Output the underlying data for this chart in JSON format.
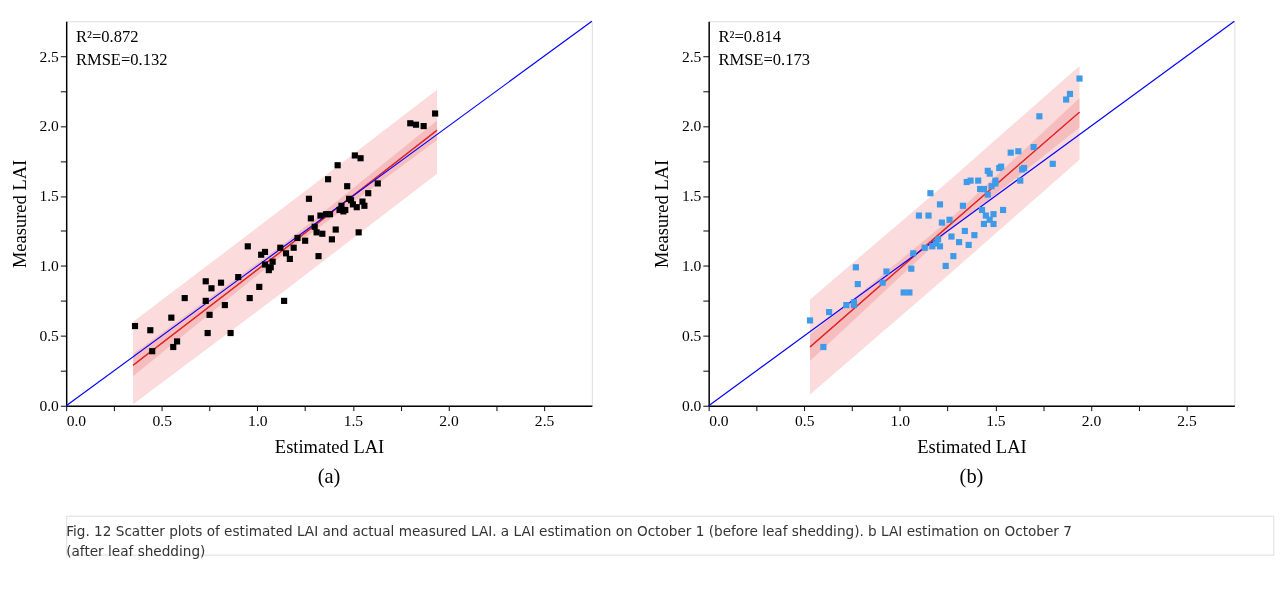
{
  "chart_data": [
    {
      "type": "scatter",
      "xlabel": "Estimated LAI",
      "ylabel": "Measured LAI",
      "grid": false,
      "xlim": [
        0,
        2.75
      ],
      "ylim": [
        0,
        2.75
      ],
      "xticks": [
        {
          "value": 0,
          "label": "0.0"
        },
        {
          "value": 0.25,
          "label": null
        },
        {
          "value": 0.5,
          "label": "0.5"
        },
        {
          "value": 0.75,
          "label": null
        },
        {
          "value": 1,
          "label": "1.0"
        },
        {
          "value": 1.25,
          "label": null
        },
        {
          "value": 1.5,
          "label": "1.5"
        },
        {
          "value": 1.75,
          "label": null
        },
        {
          "value": 2,
          "label": "2.0"
        },
        {
          "value": 2.25,
          "label": null
        },
        {
          "value": 2.5,
          "label": "2.5"
        }
      ],
      "yticks": [
        {
          "value": 0,
          "label": "0.0"
        },
        {
          "value": 0.25,
          "label": null
        },
        {
          "value": 0.5,
          "label": "0.5"
        },
        {
          "value": 0.75,
          "label": null
        },
        {
          "value": 1,
          "label": "1.0"
        },
        {
          "value": 1.25,
          "label": null
        },
        {
          "value": 1.5,
          "label": "1.5"
        },
        {
          "value": 1.75,
          "label": null
        },
        {
          "value": 2,
          "label": "2.0"
        },
        {
          "value": 2.25,
          "label": null
        },
        {
          "value": 2.5,
          "label": "2.5"
        }
      ],
      "annotations": [
        "R²=0.872",
        "RMSE=0.132",
        "(a)"
      ],
      "series": [
        {
          "type": "line",
          "color": "#e82020",
          "x": [
            0.35,
            1.15,
            1.94
          ],
          "values": [
            0.29,
            1.13,
            1.97
          ],
          "lower": [
            0.01,
            0.83,
            1.66
          ],
          "upper": [
            0.6,
            1.43,
            2.26
          ]
        },
        {
          "type": "line",
          "color": "#e0282a",
          "x": [
            0.35,
            1.15,
            1.94
          ],
          "values": [
            0.29,
            1.13,
            1.97
          ],
          "lower": [
            0.21,
            1.1,
            1.9
          ],
          "upper": [
            0.37,
            1.17,
            2.04
          ]
        },
        {
          "type": "line",
          "color": "#0000ff",
          "x": [
            0,
            2.75
          ],
          "values": [
            0,
            2.75
          ]
        },
        {
          "type": "scatter",
          "marker": "square",
          "color": "#000000",
          "x": [
            0.36,
            0.44,
            0.45,
            0.55,
            0.56,
            0.58,
            0.62,
            0.73,
            0.73,
            0.74,
            0.75,
            0.76,
            0.81,
            0.83,
            0.86,
            0.9,
            0.95,
            0.96,
            1.01,
            1.02,
            1.04,
            1.04,
            1.06,
            1.07,
            1.08,
            1.12,
            1.14,
            1.15,
            1.17,
            1.19,
            1.21,
            1.25,
            1.27,
            1.28,
            1.3,
            1.31,
            1.32,
            1.33,
            1.34,
            1.36,
            1.37,
            1.38,
            1.39,
            1.41,
            1.42,
            1.43,
            1.44,
            1.45,
            1.46,
            1.47,
            1.48,
            1.49,
            1.5,
            1.51,
            1.52,
            1.53,
            1.54,
            1.55,
            1.56,
            1.58,
            1.63,
            1.8,
            1.83,
            1.87,
            1.93
          ],
          "values": [
            0.57,
            0.54,
            0.39,
            0.63,
            0.42,
            0.46,
            0.77,
            0.89,
            0.75,
            0.52,
            0.65,
            0.84,
            0.88,
            0.72,
            0.52,
            0.92,
            1.14,
            0.77,
            0.85,
            1.08,
            1.1,
            1.01,
            0.97,
            0.99,
            1.03,
            1.13,
            0.75,
            1.09,
            1.05,
            1.13,
            1.2,
            1.18,
            1.48,
            1.34,
            1.28,
            1.24,
            1.07,
            1.36,
            1.23,
            1.37,
            1.62,
            1.37,
            1.19,
            1.26,
            1.72,
            1.4,
            1.43,
            1.39,
            1.4,
            1.57,
            1.48,
            1.47,
            1.44,
            1.79,
            1.42,
            1.24,
            1.77,
            1.46,
            1.43,
            1.52,
            1.59,
            2.02,
            2.01,
            2.0,
            2.09
          ]
        }
      ]
    },
    {
      "type": "scatter",
      "xlabel": "Estimated LAI",
      "ylabel": "Measured LAI",
      "grid": false,
      "xlim": [
        0,
        2.75
      ],
      "ylim": [
        0,
        2.75
      ],
      "xticks": [
        {
          "value": 0,
          "label": "0.0"
        },
        {
          "value": 0.25,
          "label": null
        },
        {
          "value": 0.5,
          "label": "0.5"
        },
        {
          "value": 0.75,
          "label": null
        },
        {
          "value": 1,
          "label": "1.0"
        },
        {
          "value": 1.25,
          "label": null
        },
        {
          "value": 1.5,
          "label": "1.5"
        },
        {
          "value": 1.75,
          "label": null
        },
        {
          "value": 2,
          "label": "2.0"
        },
        {
          "value": 2.25,
          "label": null
        },
        {
          "value": 2.5,
          "label": "2.5"
        }
      ],
      "yticks": [
        {
          "value": 0,
          "label": "0.0"
        },
        {
          "value": 0.25,
          "label": null
        },
        {
          "value": 0.5,
          "label": "0.5"
        },
        {
          "value": 0.75,
          "label": null
        },
        {
          "value": 1,
          "label": "1.0"
        },
        {
          "value": 1.25,
          "label": null
        },
        {
          "value": 1.5,
          "label": "1.5"
        },
        {
          "value": 1.75,
          "label": null
        },
        {
          "value": 2,
          "label": "2.0"
        },
        {
          "value": 2.25,
          "label": null
        },
        {
          "value": 2.5,
          "label": "2.5"
        }
      ],
      "annotations": [
        "R²=0.814",
        "RMSE=0.173",
        "(b)"
      ],
      "series": [
        {
          "type": "line",
          "color": "#e82020",
          "x": [
            0.53,
            1.25,
            1.94
          ],
          "values": [
            0.42,
            1.28,
            2.1
          ],
          "lower": [
            0.08,
            0.93,
            1.76
          ],
          "upper": [
            0.76,
            1.6,
            2.43
          ]
        },
        {
          "type": "line",
          "color": "#e0282a",
          "x": [
            0.53,
            1.25,
            1.94
          ],
          "values": [
            0.42,
            1.28,
            2.1
          ],
          "lower": [
            0.32,
            1.24,
            1.99
          ],
          "upper": [
            0.51,
            1.32,
            2.2
          ]
        },
        {
          "type": "line",
          "color": "#0000ff",
          "x": [
            0,
            2.75
          ],
          "values": [
            0,
            2.75
          ]
        },
        {
          "type": "scatter",
          "marker": "square",
          "color": "#3d9be9",
          "x": [
            0.53,
            0.6,
            0.63,
            0.72,
            0.76,
            0.76,
            0.77,
            0.78,
            0.91,
            0.93,
            1.02,
            1.05,
            1.06,
            1.07,
            1.1,
            1.13,
            1.15,
            1.16,
            1.17,
            1.19,
            1.2,
            1.21,
            1.21,
            1.22,
            1.24,
            1.26,
            1.27,
            1.28,
            1.31,
            1.33,
            1.34,
            1.35,
            1.36,
            1.37,
            1.39,
            1.41,
            1.42,
            1.43,
            1.44,
            1.44,
            1.45,
            1.46,
            1.46,
            1.47,
            1.47,
            1.48,
            1.49,
            1.49,
            1.5,
            1.5,
            1.52,
            1.53,
            1.54,
            1.58,
            1.62,
            1.63,
            1.64,
            1.65,
            1.7,
            1.73,
            1.8,
            1.87,
            1.89,
            1.94
          ],
          "values": [
            0.61,
            0.42,
            0.67,
            0.72,
            0.72,
            0.74,
            0.99,
            0.87,
            0.88,
            0.96,
            0.81,
            0.81,
            0.98,
            1.09,
            1.36,
            1.13,
            1.36,
            1.52,
            1.14,
            1.16,
            1.19,
            1.44,
            1.14,
            1.31,
            1.0,
            1.33,
            1.21,
            1.07,
            1.17,
            1.43,
            1.25,
            1.6,
            1.15,
            1.61,
            1.22,
            1.61,
            1.55,
            1.4,
            1.55,
            1.3,
            1.36,
            1.68,
            1.51,
            1.33,
            1.66,
            1.57,
            1.37,
            1.3,
            1.61,
            1.59,
            1.7,
            1.71,
            1.4,
            1.81,
            1.82,
            1.61,
            1.69,
            1.7,
            1.85,
            2.07,
            1.73,
            2.19,
            2.23,
            2.34
          ]
        }
      ]
    },
    {
      "type": "other",
      "annotations": [
        "Fig. 12  Scatter plots of estimated LAI and actual measured LAI. a LAI estimation on October 1 (before leaf shedding). b LAI estimation on October 7 (after leaf shedding)"
      ]
    }
  ]
}
